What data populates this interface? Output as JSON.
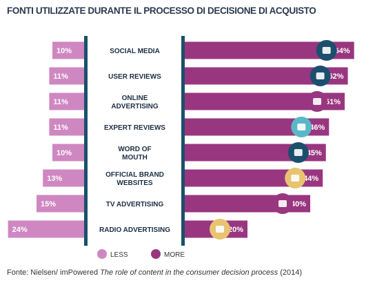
{
  "chart_data": {
    "type": "bar",
    "title": "FONTI UTILIZZATE DURANTE IL PROCESSO DI DECISIONE DI ACQUISTO",
    "categories": [
      [
        "SOCIAL MEDIA"
      ],
      [
        "USER REVIEWS"
      ],
      [
        "ONLINE",
        "ADVERTISING"
      ],
      [
        "EXPERT REVIEWS"
      ],
      [
        "WORD OF",
        "MOUTH"
      ],
      [
        "OFFICIAL BRAND",
        "WEBSITES"
      ],
      [
        "TV ADVERTISING"
      ],
      [
        "RADIO ADVERTISING"
      ]
    ],
    "series": [
      {
        "name": "LESS",
        "color": "#cf87c1",
        "values": [
          10,
          11,
          11,
          11,
          10,
          13,
          15,
          24
        ],
        "labels": [
          "10%",
          "11%",
          "11%",
          "11%",
          "10%",
          "13%",
          "15%",
          "24%"
        ]
      },
      {
        "name": "MORE",
        "color": "#993680",
        "values": [
          54,
          52,
          51,
          46,
          45,
          44,
          40,
          20
        ],
        "labels": [
          "54%",
          "52%",
          "51%",
          "46%",
          "45%",
          "44%",
          "40%",
          "20%"
        ]
      }
    ],
    "icons": [
      "twitter-bird-icon",
      "chat-bubbles-icon",
      "monitor-icon",
      "thumbs-up-icon",
      "talking-heads-icon",
      "mobile-phone-icon",
      "tv-icon",
      "radio-icon"
    ],
    "icon_colors": [
      "#1c4f6d",
      "#1c4f6d",
      "#993680",
      "#5bb7c6",
      "#1c4f6d",
      "#e8c470",
      "#993680",
      "#e8c470"
    ],
    "divider_color": "#1c4f6d",
    "label_color": "#1c2e44",
    "legend_placement": "bottom-center",
    "grid": false
  },
  "source": {
    "prefix": "Fonte: Nielsen/ imPowered ",
    "title": "The role of content in the consumer decision process",
    "suffix": " (2014)"
  }
}
